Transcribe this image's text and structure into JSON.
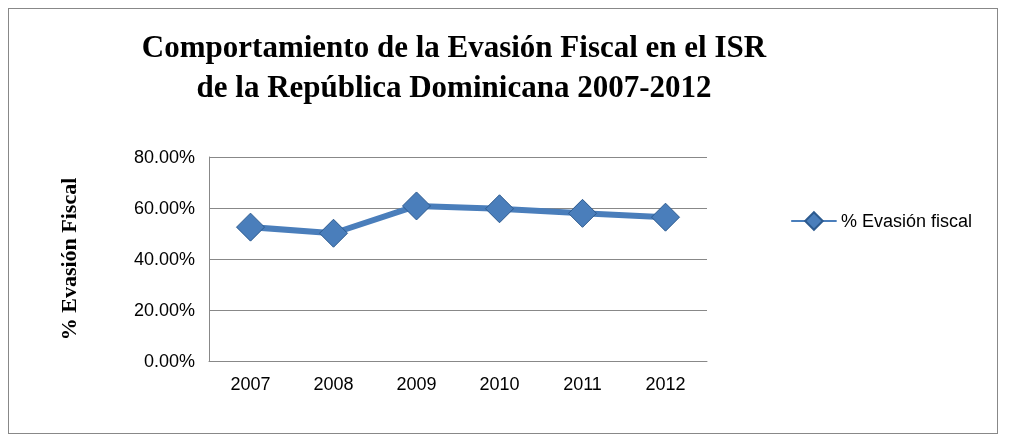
{
  "chart_data": {
    "type": "line",
    "title": "Comportamiento de la Evasión Fiscal en el ISR\nde la República Dominicana 2007-2012",
    "ylabel": "% Evasión Fiscal",
    "categories": [
      "2007",
      "2008",
      "2009",
      "2010",
      "2011",
      "2012"
    ],
    "series": [
      {
        "name": "% Evasión fiscal",
        "color": "#4a7ebb",
        "values": [
          52.5,
          50.1,
          60.8,
          59.7,
          57.9,
          56.4
        ]
      }
    ],
    "ylim": [
      0,
      80
    ],
    "yticks": [
      {
        "value": 0,
        "label": "0.00%"
      },
      {
        "value": 20,
        "label": "20.00%"
      },
      {
        "value": 40,
        "label": "40.00%"
      },
      {
        "value": 60,
        "label": "60.00%"
      },
      {
        "value": 80,
        "label": "80.00%"
      }
    ],
    "grid": "y",
    "legend": "right",
    "marker": "diamond",
    "line_style": "solid"
  }
}
